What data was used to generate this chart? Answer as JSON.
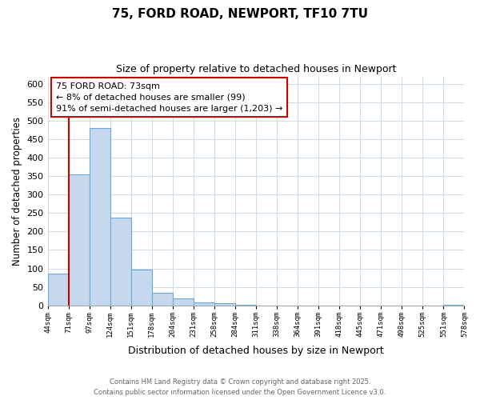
{
  "title": "75, FORD ROAD, NEWPORT, TF10 7TU",
  "subtitle": "Size of property relative to detached houses in Newport",
  "bar_values": [
    85,
    355,
    480,
    238,
    97,
    35,
    18,
    7,
    5,
    1,
    0,
    0,
    0,
    0,
    0,
    0,
    0,
    0,
    0,
    1
  ],
  "bar_labels": [
    "44sqm",
    "71sqm",
    "97sqm",
    "124sqm",
    "151sqm",
    "178sqm",
    "204sqm",
    "231sqm",
    "258sqm",
    "284sqm",
    "311sqm",
    "338sqm",
    "364sqm",
    "391sqm",
    "418sqm",
    "445sqm",
    "471sqm",
    "498sqm",
    "525sqm",
    "551sqm",
    "578sqm"
  ],
  "bar_color": "#c5d8ee",
  "bar_edge_color": "#6aaad4",
  "marker_line_color": "#cc0000",
  "ylabel": "Number of detached properties",
  "xlabel": "Distribution of detached houses by size in Newport",
  "ylim": [
    0,
    620
  ],
  "yticks": [
    0,
    50,
    100,
    150,
    200,
    250,
    300,
    350,
    400,
    450,
    500,
    550,
    600
  ],
  "annotation_title": "75 FORD ROAD: 73sqm",
  "annotation_line1": "← 8% of detached houses are smaller (99)",
  "annotation_line2": "91% of semi-detached houses are larger (1,203) →",
  "footer_line1": "Contains HM Land Registry data © Crown copyright and database right 2025.",
  "footer_line2": "Contains public sector information licensed under the Open Government Licence v3.0.",
  "background_color": "#ffffff",
  "grid_color": "#d0dce8"
}
